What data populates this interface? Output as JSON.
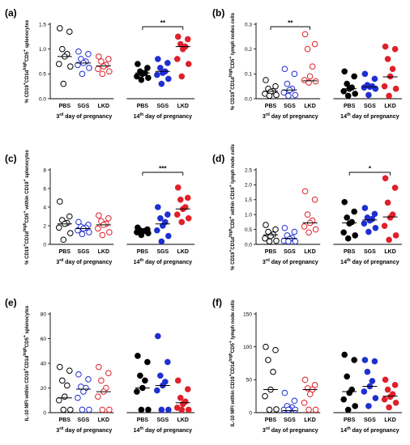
{
  "figure": {
    "group_labels": [
      "PBS",
      "SGS",
      "LKD"
    ],
    "colors": {
      "PBS": "#000000",
      "SGS": "#1f2fd0",
      "LKD": "#e0202a",
      "line": "#000000"
    },
    "marker_fill": {
      "day3": "hollow",
      "day14": "filled"
    }
  },
  "chart_data": [
    {
      "panel_label": "(a)",
      "type": "scatter",
      "ylabel": "% CD19⁺CD1dʰⁱᵍʰCD5⁺ splenocytes",
      "ylim": [
        0,
        1.5
      ],
      "yticks": [
        "0.0",
        "0.5",
        "1.0",
        "1.5"
      ],
      "period_labels": [
        "3rd day of pregnancy",
        "14th day of pregnancy"
      ],
      "significance": {
        "label": "**",
        "from": "day14.PBS",
        "to": "day14.LKD"
      },
      "series": [
        {
          "name": "PBS",
          "period": "day3",
          "median": 0.85,
          "values": [
            1.42,
            1.35,
            1.0,
            0.9,
            0.85,
            0.7,
            0.65,
            0.3
          ]
        },
        {
          "name": "SGS",
          "period": "day3",
          "median": 0.72,
          "values": [
            0.95,
            0.9,
            0.8,
            0.75,
            0.72,
            0.68,
            0.62,
            0.5
          ]
        },
        {
          "name": "LKD",
          "period": "day3",
          "median": 0.66,
          "values": [
            0.85,
            0.8,
            0.75,
            0.68,
            0.65,
            0.6,
            0.55,
            0.5
          ]
        },
        {
          "name": "PBS",
          "period": "day14",
          "median": 0.52,
          "values": [
            0.7,
            0.62,
            0.55,
            0.52,
            0.5,
            0.45,
            0.42,
            0.38
          ]
        },
        {
          "name": "SGS",
          "period": "day14",
          "median": 0.55,
          "values": [
            0.8,
            0.72,
            0.62,
            0.55,
            0.52,
            0.48,
            0.4,
            0.3
          ]
        },
        {
          "name": "LKD",
          "period": "day14",
          "median": 1.05,
          "values": [
            1.25,
            1.2,
            1.1,
            1.05,
            1.0,
            0.8,
            0.7,
            0.45
          ]
        }
      ]
    },
    {
      "panel_label": "(b)",
      "type": "scatter",
      "ylabel": "% CD19⁺CD1dʰⁱᵍʰCD5⁺ lymph nodes cells",
      "ylim": [
        0,
        0.3
      ],
      "yticks": [
        "0.0",
        "0.1",
        "0.2",
        "0.3"
      ],
      "period_labels": [
        "3rd day of pregnancy",
        "14th day of pregnancy"
      ],
      "significance": {
        "label": "**",
        "from": "day3.PBS",
        "to": "day3.LKD"
      },
      "series": [
        {
          "name": "PBS",
          "period": "day3",
          "median": 0.03,
          "values": [
            0.075,
            0.05,
            0.04,
            0.03,
            0.028,
            0.02,
            0.015,
            0.01
          ]
        },
        {
          "name": "SGS",
          "period": "day3",
          "median": 0.035,
          "values": [
            0.12,
            0.1,
            0.06,
            0.04,
            0.035,
            0.025,
            0.015,
            0.005
          ]
        },
        {
          "name": "LKD",
          "period": "day3",
          "median": 0.072,
          "values": [
            0.26,
            0.22,
            0.2,
            0.13,
            0.09,
            0.075,
            0.07,
            0.065
          ]
        },
        {
          "name": "PBS",
          "period": "day14",
          "median": 0.04,
          "values": [
            0.11,
            0.09,
            0.06,
            0.045,
            0.04,
            0.03,
            0.02,
            0.01
          ]
        },
        {
          "name": "SGS",
          "period": "day14",
          "median": 0.048,
          "values": [
            0.1,
            0.08,
            0.055,
            0.05,
            0.048,
            0.045,
            0.04,
            0.015
          ]
        },
        {
          "name": "LKD",
          "period": "day14",
          "median": 0.088,
          "values": [
            0.21,
            0.2,
            0.16,
            0.12,
            0.09,
            0.05,
            0.04,
            0.01
          ]
        }
      ]
    },
    {
      "panel_label": "(c)",
      "type": "scatter",
      "ylabel": "% CD19⁺CD1dʰⁱᵍʰCD5⁺ within CD19⁺ splenocytes",
      "ylim": [
        0,
        8
      ],
      "yticks": [
        "0",
        "2",
        "4",
        "6",
        "8"
      ],
      "period_labels": [
        "3rd day of pregnancy",
        "14th day of pregnancy"
      ],
      "significance": {
        "label": "***",
        "from": "day14.PBS",
        "to": "day14.LKD"
      },
      "series": [
        {
          "name": "PBS",
          "period": "day3",
          "median": 2.2,
          "values": [
            4.6,
            3.0,
            2.6,
            2.3,
            2.2,
            1.8,
            1.2,
            0.5
          ]
        },
        {
          "name": "SGS",
          "period": "day3",
          "median": 1.7,
          "values": [
            2.4,
            2.1,
            1.9,
            1.8,
            1.7,
            1.5,
            1.3,
            1.1
          ]
        },
        {
          "name": "LKD",
          "period": "day3",
          "median": 2.1,
          "values": [
            3.1,
            2.8,
            2.5,
            2.2,
            2.1,
            1.7,
            1.3,
            1.0
          ]
        },
        {
          "name": "PBS",
          "period": "day14",
          "median": 1.4,
          "values": [
            1.8,
            1.6,
            1.5,
            1.45,
            1.4,
            1.3,
            1.2,
            1.0
          ]
        },
        {
          "name": "SGS",
          "period": "day14",
          "median": 2.2,
          "values": [
            4.0,
            3.2,
            2.8,
            2.4,
            2.0,
            1.5,
            0.9,
            0.3
          ]
        },
        {
          "name": "LKD",
          "period": "day14",
          "median": 3.8,
          "values": [
            6.1,
            5.0,
            4.8,
            4.0,
            3.8,
            3.2,
            2.8,
            2.4
          ]
        }
      ]
    },
    {
      "panel_label": "(d)",
      "type": "scatter",
      "ylabel": "% CD19⁺CD1dʰⁱᵍʰCD5⁺ within CD19⁺ lymph node cells",
      "ylim": [
        0,
        2.5
      ],
      "yticks": [
        "0.0",
        "0.5",
        "1.0",
        "1.5",
        "2.0",
        "2.5"
      ],
      "period_labels": [
        "3rd day of pregnancy",
        "14th day of pregnancy"
      ],
      "significance": {
        "label": "*",
        "from": "day14.PBS",
        "to": "day14.LKD"
      },
      "series": [
        {
          "name": "PBS",
          "period": "day3",
          "median": 0.32,
          "values": [
            0.65,
            0.5,
            0.42,
            0.33,
            0.28,
            0.2,
            0.12,
            0.05
          ]
        },
        {
          "name": "SGS",
          "period": "day3",
          "median": 0.2,
          "values": [
            0.55,
            0.42,
            0.3,
            0.22,
            0.18,
            0.12,
            0.08,
            0.05
          ]
        },
        {
          "name": "LKD",
          "period": "day3",
          "median": 0.72,
          "values": [
            1.78,
            1.5,
            1.0,
            0.8,
            0.72,
            0.6,
            0.5,
            0.4
          ]
        },
        {
          "name": "PBS",
          "period": "day14",
          "median": 0.72,
          "values": [
            1.42,
            1.1,
            0.9,
            0.75,
            0.7,
            0.4,
            0.3,
            0.2
          ]
        },
        {
          "name": "SGS",
          "period": "day14",
          "median": 0.82,
          "values": [
            1.22,
            1.02,
            0.9,
            0.85,
            0.8,
            0.7,
            0.55,
            0.42
          ]
        },
        {
          "name": "LKD",
          "period": "day14",
          "median": 0.92,
          "values": [
            2.22,
            1.9,
            1.4,
            1.0,
            0.9,
            0.62,
            0.3,
            0.15
          ]
        }
      ]
    },
    {
      "panel_label": "(e)",
      "type": "scatter",
      "ylabel": "IL-10 MFI within CD19⁺CD1dʰⁱᵍʰCD5⁺ splenocytes",
      "ylim": [
        0,
        80
      ],
      "yticks": [
        "0",
        "20",
        "40",
        "60",
        "80"
      ],
      "period_labels": [
        "3rd day of pregnancy",
        "14th day of pregnancy"
      ],
      "significance": null,
      "series": [
        {
          "name": "PBS",
          "period": "day3",
          "median": 12,
          "values": [
            37,
            34,
            26,
            22,
            13,
            10,
            0,
            0
          ]
        },
        {
          "name": "SGS",
          "period": "day3",
          "median": 19,
          "values": [
            31,
            27,
            21,
            20,
            17,
            12,
            1,
            0
          ]
        },
        {
          "name": "LKD",
          "period": "day3",
          "median": 17,
          "values": [
            37,
            32,
            26,
            20,
            17,
            13,
            1,
            0
          ]
        },
        {
          "name": "PBS",
          "period": "day14",
          "median": 20,
          "values": [
            46,
            41,
            30,
            26,
            20,
            17,
            0,
            0
          ]
        },
        {
          "name": "SGS",
          "period": "day14",
          "median": 22,
          "values": [
            62,
            41,
            30,
            25,
            22,
            18,
            0,
            0
          ]
        },
        {
          "name": "LKD",
          "period": "day14",
          "median": 8,
          "values": [
            26,
            19,
            12,
            9,
            7,
            4,
            1,
            0
          ]
        }
      ]
    },
    {
      "panel_label": "(f)",
      "type": "scatter",
      "ylabel": "IL-10 MFI within CD19⁺CD1dʰⁱᵍʰCD5⁺ lymph node cells",
      "ylim": [
        0,
        150
      ],
      "yticks": [
        "0",
        "50",
        "100",
        "150"
      ],
      "period_labels": [
        "3rd day of pregnancy",
        "14th day of pregnancy"
      ],
      "significance": null,
      "series": [
        {
          "name": "PBS",
          "period": "day3",
          "median": 35,
          "values": [
            100,
            95,
            80,
            62,
            35,
            25,
            5,
            0
          ]
        },
        {
          "name": "SGS",
          "period": "day3",
          "median": 3,
          "values": [
            30,
            18,
            10,
            8,
            5,
            3,
            1,
            0
          ]
        },
        {
          "name": "LKD",
          "period": "day3",
          "median": 35,
          "values": [
            50,
            42,
            37,
            35,
            28,
            15,
            0,
            0
          ]
        },
        {
          "name": "PBS",
          "period": "day14",
          "median": 32,
          "values": [
            88,
            80,
            55,
            35,
            30,
            20,
            10,
            0
          ]
        },
        {
          "name": "SGS",
          "period": "day14",
          "median": 40,
          "values": [
            80,
            78,
            62,
            48,
            40,
            32,
            22,
            10
          ]
        },
        {
          "name": "LKD",
          "period": "day14",
          "median": 25,
          "values": [
            50,
            42,
            35,
            28,
            24,
            20,
            15,
            8
          ]
        }
      ]
    }
  ]
}
